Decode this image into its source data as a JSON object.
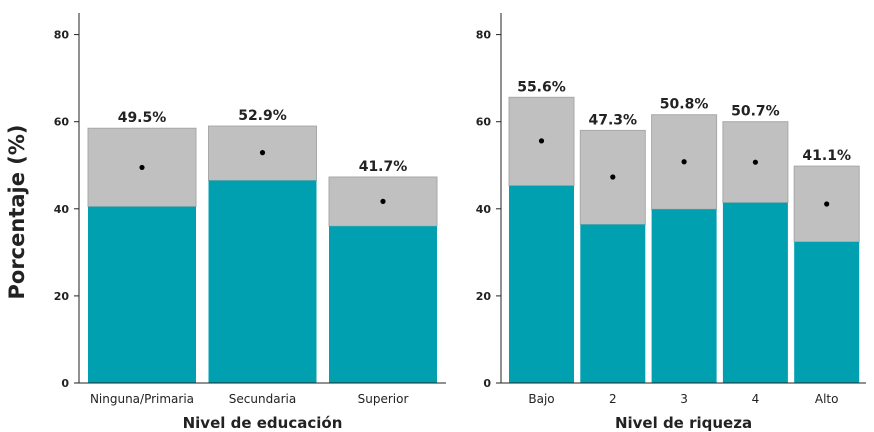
{
  "ylabel": "Porcentaje (%)",
  "colors": {
    "lower": "#00a0b0",
    "upper": "#c0c0c0",
    "upper_edge": "#a8a8a8",
    "dot": "#000000",
    "axis": "#222222"
  },
  "chart_data": [
    {
      "type": "bar",
      "xlabel": "Nivel de educación",
      "ylim": [
        0,
        85
      ],
      "yticks": [
        0,
        20,
        40,
        60,
        80
      ],
      "categories": [
        "Ninguna/Primaria",
        "Secundaria",
        "Superior"
      ],
      "series": [
        {
          "values": [
            40.5,
            46.5,
            36.0
          ]
        },
        {
          "values": [
            58.5,
            59.0,
            47.3
          ]
        }
      ],
      "points": [
        49.5,
        52.9,
        41.7
      ],
      "labels": [
        "49.5%",
        "52.9%",
        "41.7%"
      ]
    },
    {
      "type": "bar",
      "xlabel": "Nivel de riqueza",
      "ylim": [
        0,
        85
      ],
      "yticks": [
        0,
        20,
        40,
        60,
        80
      ],
      "categories": [
        "Bajo",
        "2",
        "3",
        "4",
        "Alto"
      ],
      "series": [
        {
          "values": [
            45.3,
            36.4,
            39.9,
            41.4,
            32.4
          ]
        },
        {
          "values": [
            65.6,
            58.0,
            61.6,
            60.0,
            49.8
          ]
        }
      ],
      "points": [
        55.6,
        47.3,
        50.8,
        50.7,
        41.1
      ],
      "labels": [
        "55.6%",
        "47.3%",
        "50.8%",
        "50.7%",
        "41.1%"
      ]
    }
  ]
}
